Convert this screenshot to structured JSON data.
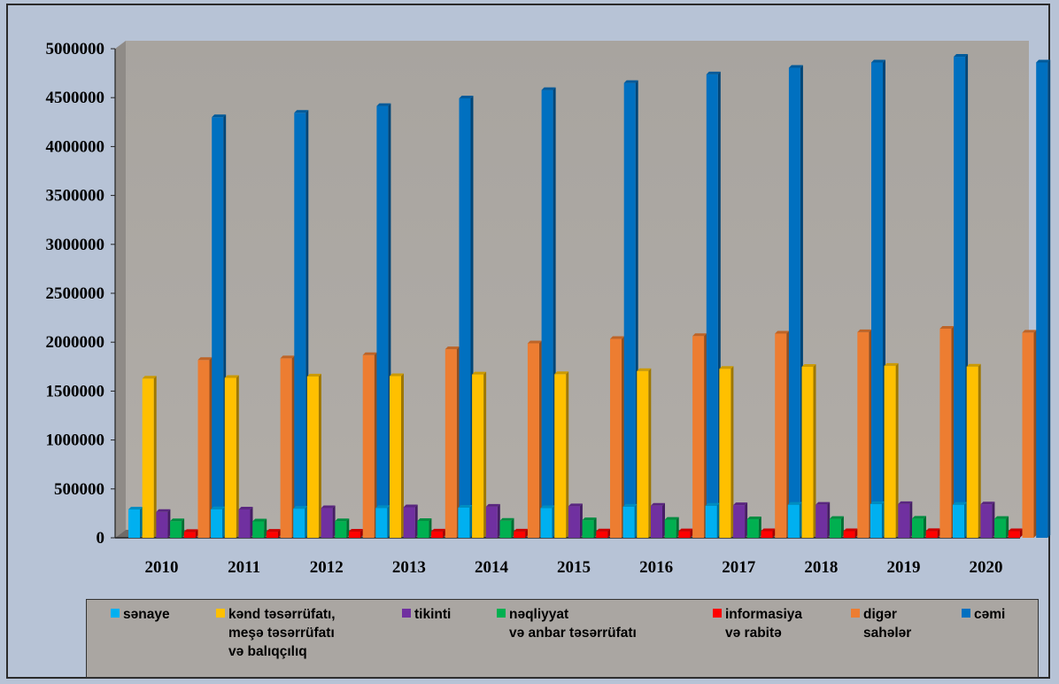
{
  "chart_data": {
    "type": "bar",
    "title": "",
    "xlabel": "",
    "ylabel": "",
    "ylim": [
      0,
      5000000
    ],
    "yticks": [
      0,
      500000,
      1000000,
      1500000,
      2000000,
      2500000,
      3000000,
      3500000,
      4000000,
      4500000,
      5000000
    ],
    "ytick_labels": [
      "0",
      "500000",
      "1000000",
      "1500000",
      "2000000",
      "2500000",
      "3000000",
      "3500000",
      "4000000",
      "4500000",
      "5000000"
    ],
    "categories": [
      "2010",
      "2011",
      "2012",
      "2013",
      "2014",
      "2015",
      "2016",
      "2017",
      "2018",
      "2019",
      "2020"
    ],
    "grid": false,
    "legend_position": "bottom",
    "series": [
      {
        "name": "sənaye",
        "color": "#00b0f0",
        "values": [
          290000,
          292000,
          298000,
          305000,
          308000,
          303000,
          318000,
          328000,
          338000,
          345000,
          338000
        ]
      },
      {
        "name": "kənd təsərrüfatı,\nmeşə təsərrüfatı\nvə balıqçılıq",
        "color": "#ffc000",
        "values": [
          1628000,
          1635000,
          1650000,
          1653000,
          1670000,
          1673000,
          1705000,
          1728000,
          1748000,
          1758000,
          1750000
        ]
      },
      {
        "name": "tikinti",
        "color": "#7030a0",
        "values": [
          265000,
          290000,
          303000,
          313000,
          318000,
          323000,
          328000,
          334000,
          338000,
          345000,
          342000
        ]
      },
      {
        "name": "nəqliyyat\nvə anbar təsərrüfatı",
        "color": "#00b050",
        "values": [
          170000,
          168000,
          170000,
          172000,
          174000,
          180000,
          185000,
          190000,
          194000,
          196000,
          194000
        ]
      },
      {
        "name": "informasiya\nvə rabitə",
        "color": "#ff0000",
        "values": [
          60000,
          62000,
          63000,
          64000,
          64000,
          66000,
          67000,
          68000,
          68000,
          69000,
          68000
        ]
      },
      {
        "name": "digər\nsahələr",
        "color": "#ed7d31",
        "values": [
          1818000,
          1835000,
          1868000,
          1928000,
          1988000,
          2033000,
          2063000,
          2088000,
          2103000,
          2138000,
          2098000
        ]
      },
      {
        "name": "cəmi",
        "color": "#0070c0",
        "values": [
          4300000,
          4345000,
          4415000,
          4493000,
          4578000,
          4650000,
          4738000,
          4805000,
          4860000,
          4918000,
          4860000
        ]
      }
    ]
  }
}
